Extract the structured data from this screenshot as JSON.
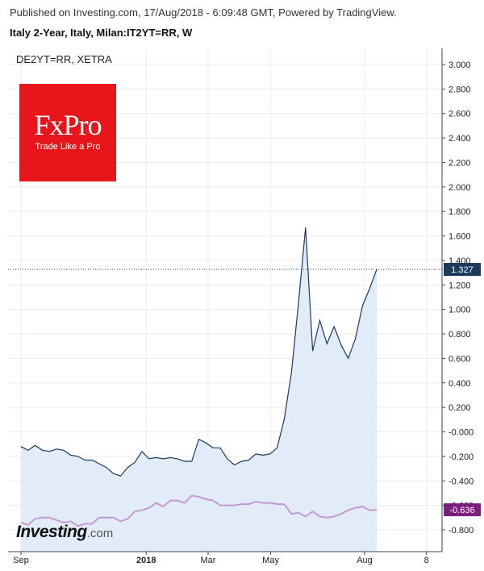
{
  "header": {
    "published": "Published on Investing.com, 17/Aug/2018 - 6:09:48 GMT, Powered by TradingView.",
    "instrument": "Italy 2-Year, Italy, Milan:IT2YT=RR, W"
  },
  "subtitle": "DE2YT=RR, XETRA",
  "fxpro_logo": {
    "name": "FxPro",
    "tagline": "Trade Like a Pro",
    "color": "#e8161b"
  },
  "investing_logo": {
    "name": "Investing",
    "tld": ".com"
  },
  "chart_data": {
    "type": "line",
    "x_axis": {
      "ticks": [
        {
          "label": "Sep",
          "week": 0,
          "bold": false
        },
        {
          "label": "2018",
          "week": 17.6,
          "bold": true
        },
        {
          "label": "Mar",
          "week": 26.3,
          "bold": false
        },
        {
          "label": "May",
          "week": 35.1,
          "bold": false
        },
        {
          "label": "Aug",
          "week": 48.3,
          "bold": false
        },
        {
          "label": "8",
          "week": 57,
          "bold": false
        }
      ]
    },
    "y_axis": {
      "ylim": [
        -0.95,
        3.1
      ],
      "ticks": [
        "3.000",
        "2.800",
        "2.600",
        "2.400",
        "2.200",
        "2.000",
        "1.800",
        "1.600",
        "1.400",
        "1.200",
        "1.000",
        "0.800",
        "0.600",
        "0.400",
        "0.200",
        "-0.000",
        "-0.200",
        "-0.400",
        "-0.600",
        "-0.800"
      ],
      "tick_values": [
        3.0,
        2.8,
        2.6,
        2.4,
        2.2,
        2.0,
        1.8,
        1.6,
        1.4,
        1.2,
        1.0,
        0.8,
        0.6,
        0.4,
        0.2,
        0.0,
        -0.2,
        -0.4,
        -0.6,
        -0.8
      ],
      "position": "right"
    },
    "series": [
      {
        "name": "IT2YT=RR",
        "color": "#1b3a5c",
        "fill": "#dde9f8",
        "last_label": "1.327",
        "last_value": 1.327,
        "values": [
          -0.12,
          -0.15,
          -0.11,
          -0.15,
          -0.16,
          -0.14,
          -0.15,
          -0.19,
          -0.2,
          -0.23,
          -0.23,
          -0.26,
          -0.29,
          -0.34,
          -0.36,
          -0.29,
          -0.25,
          -0.16,
          -0.22,
          -0.21,
          -0.22,
          -0.21,
          -0.22,
          -0.24,
          -0.24,
          -0.06,
          -0.09,
          -0.13,
          -0.13,
          -0.22,
          -0.27,
          -0.24,
          -0.23,
          -0.18,
          -0.19,
          -0.18,
          -0.13,
          0.1,
          0.48,
          1.05,
          1.67,
          0.66,
          0.91,
          0.72,
          0.86,
          0.71,
          0.6,
          0.76,
          1.03,
          1.17,
          1.327
        ]
      },
      {
        "name": "DE2YT=RR",
        "color": "#c39bd3",
        "last_label": "-0.636",
        "last_value": -0.636,
        "last_label_color": "#7b1f7e",
        "values": [
          -0.74,
          -0.76,
          -0.71,
          -0.7,
          -0.7,
          -0.72,
          -0.74,
          -0.73,
          -0.77,
          -0.75,
          -0.75,
          -0.7,
          -0.7,
          -0.7,
          -0.73,
          -0.71,
          -0.65,
          -0.64,
          -0.62,
          -0.58,
          -0.61,
          -0.56,
          -0.56,
          -0.58,
          -0.52,
          -0.53,
          -0.55,
          -0.56,
          -0.6,
          -0.6,
          -0.6,
          -0.59,
          -0.59,
          -0.57,
          -0.58,
          -0.58,
          -0.59,
          -0.59,
          -0.67,
          -0.66,
          -0.69,
          -0.65,
          -0.69,
          -0.7,
          -0.69,
          -0.67,
          -0.64,
          -0.62,
          -0.61,
          -0.64,
          -0.636
        ]
      }
    ],
    "dotted_level": 1.327,
    "grid": true
  }
}
